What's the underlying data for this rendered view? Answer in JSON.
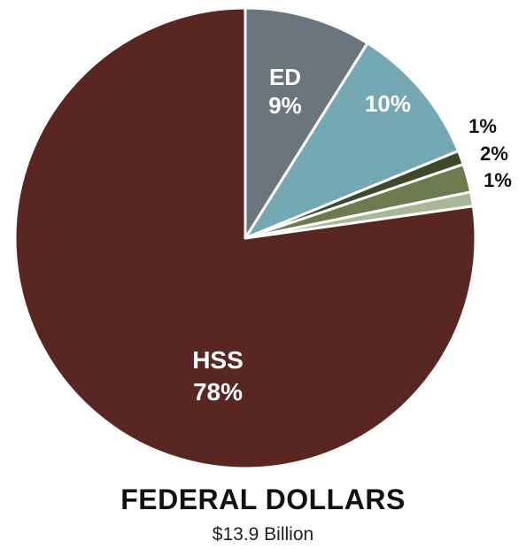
{
  "chart_data": {
    "type": "pie",
    "title": "FEDERAL DOLLARS",
    "subtitle": "$13.9 Billion",
    "slices": [
      {
        "name": "ED",
        "label": "9%",
        "value": 9,
        "color": "#6b757e",
        "label_color": "#ffffff"
      },
      {
        "name": "",
        "label": "10%",
        "value": 10,
        "color": "#74a8b2",
        "label_color": "#ffffff"
      },
      {
        "name": "",
        "label": "1%",
        "value": 1,
        "color": "#3d4a2a",
        "label_color": "#111111"
      },
      {
        "name": "",
        "label": "2%",
        "value": 2,
        "color": "#6b7a4f",
        "label_color": "#111111"
      },
      {
        "name": "",
        "label": "1%",
        "value": 1,
        "color": "#a9b795",
        "label_color": "#111111"
      },
      {
        "name": "HSS",
        "label": "78%",
        "value": 78,
        "color": "#5a2622",
        "label_color": "#ffffff"
      }
    ]
  }
}
